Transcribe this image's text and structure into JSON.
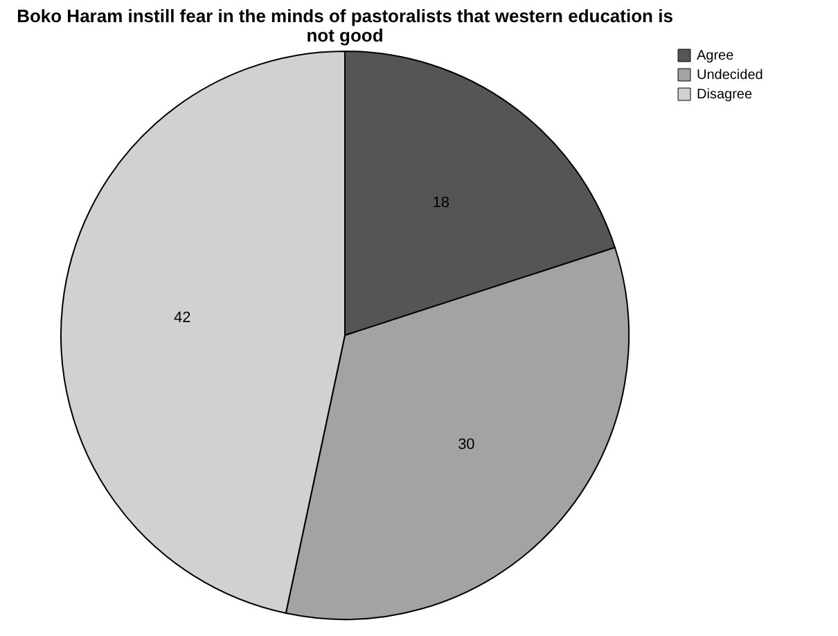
{
  "chart_data": {
    "type": "pie",
    "title": "Boko Haram instill fear in the minds of pastoralists that western education is not good",
    "categories": [
      "Agree",
      "Undecided",
      "Disagree"
    ],
    "values": [
      18,
      30,
      42
    ],
    "colors": [
      "#555555",
      "#a3a3a3",
      "#d1d1d1"
    ],
    "data_labels": true,
    "legend": "top right"
  }
}
